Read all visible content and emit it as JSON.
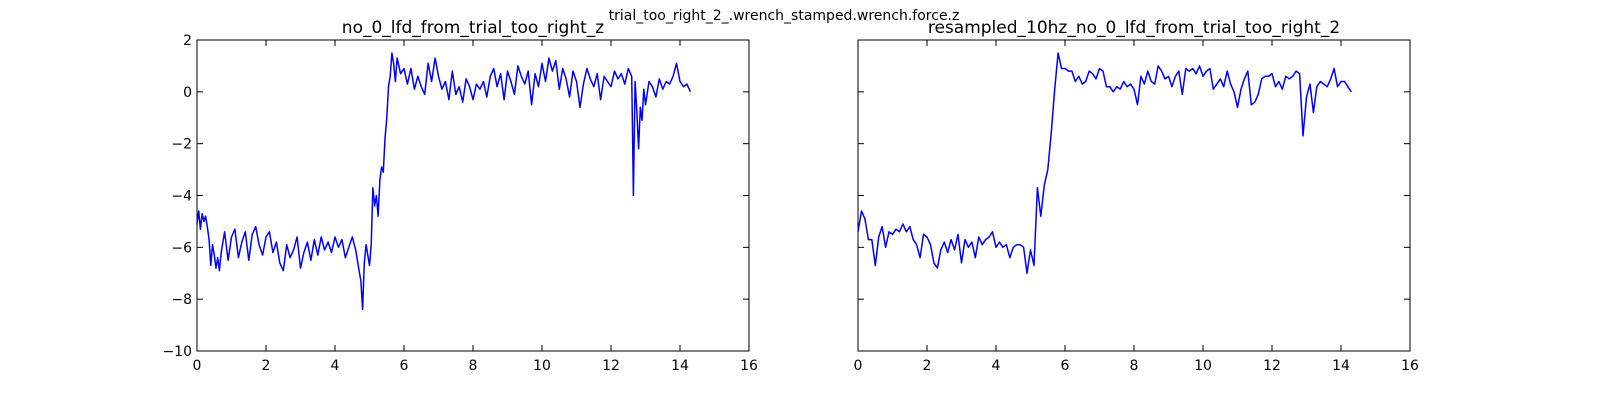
{
  "figure": {
    "suptitle": "trial_too_right_2_.wrench_stamped.wrench.force.z"
  },
  "chart_data": [
    {
      "type": "line",
      "title": "no_0_lfd_from_trial_too_right_z",
      "xlabel": "",
      "ylabel": "",
      "xlim": [
        0,
        16
      ],
      "ylim": [
        -10,
        2
      ],
      "xticks": [
        "0",
        "2",
        "4",
        "6",
        "8",
        "10",
        "12",
        "14",
        "16"
      ],
      "yticks": [
        "−10",
        "−8",
        "−6",
        "−4",
        "−2",
        "0",
        "2"
      ],
      "show_yticklabels": true,
      "grid": false,
      "series": [
        {
          "color": "#0000ff",
          "x": [
            0.0,
            0.05,
            0.1,
            0.15,
            0.2,
            0.25,
            0.3,
            0.35,
            0.4,
            0.45,
            0.5,
            0.55,
            0.6,
            0.65,
            0.7,
            0.8,
            0.9,
            1.0,
            1.1,
            1.2,
            1.3,
            1.4,
            1.5,
            1.6,
            1.7,
            1.8,
            1.9,
            2.0,
            2.1,
            2.2,
            2.3,
            2.4,
            2.5,
            2.6,
            2.7,
            2.8,
            2.9,
            3.0,
            3.1,
            3.2,
            3.3,
            3.4,
            3.5,
            3.6,
            3.7,
            3.8,
            3.9,
            4.0,
            4.1,
            4.2,
            4.3,
            4.4,
            4.5,
            4.6,
            4.7,
            4.75,
            4.8,
            4.85,
            4.9,
            5.0,
            5.05,
            5.1,
            5.15,
            5.2,
            5.25,
            5.3,
            5.35,
            5.4,
            5.45,
            5.5,
            5.55,
            5.6,
            5.65,
            5.7,
            5.75,
            5.8,
            5.9,
            6.0,
            6.1,
            6.2,
            6.3,
            6.4,
            6.5,
            6.6,
            6.7,
            6.8,
            6.9,
            7.0,
            7.1,
            7.2,
            7.3,
            7.4,
            7.5,
            7.6,
            7.7,
            7.8,
            7.9,
            8.0,
            8.1,
            8.2,
            8.3,
            8.4,
            8.5,
            8.6,
            8.7,
            8.8,
            8.9,
            9.0,
            9.1,
            9.2,
            9.3,
            9.4,
            9.5,
            9.6,
            9.7,
            9.8,
            9.9,
            10.0,
            10.1,
            10.2,
            10.3,
            10.4,
            10.5,
            10.6,
            10.7,
            10.8,
            10.9,
            11.0,
            11.1,
            11.2,
            11.3,
            11.4,
            11.5,
            11.6,
            11.7,
            11.8,
            11.9,
            12.0,
            12.1,
            12.2,
            12.3,
            12.4,
            12.5,
            12.6,
            12.62,
            12.65,
            12.68,
            12.7,
            12.75,
            12.8,
            12.85,
            12.9,
            12.95,
            13.0,
            13.1,
            13.2,
            13.3,
            13.4,
            13.5,
            13.6,
            13.7,
            13.8,
            13.9,
            14.0,
            14.1,
            14.2,
            14.3
          ],
          "y": [
            -5.1,
            -4.6,
            -5.3,
            -4.7,
            -5.0,
            -4.8,
            -5.2,
            -5.7,
            -6.7,
            -5.9,
            -6.3,
            -6.8,
            -6.4,
            -6.9,
            -6.2,
            -5.4,
            -6.5,
            -5.6,
            -5.3,
            -6.4,
            -5.8,
            -5.4,
            -6.5,
            -5.5,
            -5.2,
            -5.9,
            -6.3,
            -5.6,
            -5.4,
            -6.2,
            -5.8,
            -6.6,
            -6.9,
            -5.9,
            -6.4,
            -6.1,
            -5.6,
            -6.8,
            -6.2,
            -5.8,
            -6.5,
            -5.7,
            -6.3,
            -5.6,
            -6.1,
            -5.8,
            -6.2,
            -5.6,
            -6.0,
            -5.7,
            -6.4,
            -6.0,
            -5.6,
            -6.1,
            -6.9,
            -7.3,
            -8.4,
            -6.6,
            -5.9,
            -6.7,
            -5.9,
            -3.7,
            -4.4,
            -4.0,
            -4.8,
            -3.4,
            -2.9,
            -3.1,
            -1.8,
            -1.0,
            0.2,
            0.6,
            1.5,
            1.1,
            0.4,
            1.3,
            0.7,
            0.9,
            0.3,
            0.9,
            0.1,
            0.6,
            0.2,
            -0.1,
            1.1,
            0.4,
            1.3,
            0.6,
            0.1,
            0.4,
            -0.3,
            0.8,
            -0.1,
            0.2,
            -0.4,
            0.5,
            0.2,
            -0.3,
            0.3,
            0.1,
            0.4,
            -0.2,
            0.6,
            0.9,
            0.2,
            0.7,
            -0.3,
            0.8,
            0.4,
            -0.1,
            1.0,
            0.6,
            0.3,
            0.8,
            -0.5,
            0.7,
            0.2,
            1.1,
            0.4,
            1.3,
            0.8,
            1.2,
            0.1,
            0.9,
            0.5,
            -0.2,
            0.8,
            0.4,
            -0.6,
            0.3,
            0.9,
            0.5,
            0.2,
            0.7,
            -0.3,
            0.6,
            0.4,
            0.2,
            0.8,
            0.5,
            0.7,
            0.3,
            0.9,
            0.6,
            -1.2,
            -4.0,
            -1.1,
            0.4,
            -0.8,
            -2.2,
            -0.6,
            -1.1,
            0.1,
            -0.5,
            0.4,
            0.2,
            -0.2,
            0.5,
            0.1,
            0.4,
            0.3,
            0.6,
            1.1,
            0.4,
            0.2,
            0.3,
            0.0
          ]
        }
      ]
    },
    {
      "type": "line",
      "title": "resampled_10hz_no_0_lfd_from_trial_too_right_2",
      "xlabel": "",
      "ylabel": "",
      "xlim": [
        0,
        16
      ],
      "ylim": [
        -10,
        2
      ],
      "xticks": [
        "0",
        "2",
        "4",
        "6",
        "8",
        "10",
        "12",
        "14",
        "16"
      ],
      "yticks": [
        "−10",
        "−8",
        "−6",
        "−4",
        "−2",
        "0",
        "2"
      ],
      "show_yticklabels": false,
      "grid": false,
      "series": [
        {
          "color": "#0000ff",
          "x": [
            0.0,
            0.1,
            0.2,
            0.3,
            0.4,
            0.5,
            0.6,
            0.7,
            0.8,
            0.9,
            1.0,
            1.1,
            1.2,
            1.3,
            1.4,
            1.5,
            1.6,
            1.7,
            1.8,
            1.9,
            2.0,
            2.1,
            2.2,
            2.3,
            2.4,
            2.5,
            2.6,
            2.7,
            2.8,
            2.9,
            3.0,
            3.1,
            3.2,
            3.3,
            3.4,
            3.5,
            3.6,
            3.7,
            3.8,
            3.9,
            4.0,
            4.1,
            4.2,
            4.3,
            4.4,
            4.5,
            4.6,
            4.7,
            4.8,
            4.9,
            5.0,
            5.1,
            5.2,
            5.3,
            5.4,
            5.5,
            5.6,
            5.7,
            5.8,
            5.9,
            6.0,
            6.1,
            6.2,
            6.3,
            6.4,
            6.5,
            6.6,
            6.7,
            6.8,
            6.9,
            7.0,
            7.1,
            7.2,
            7.3,
            7.4,
            7.5,
            7.6,
            7.7,
            7.8,
            7.9,
            8.0,
            8.1,
            8.2,
            8.3,
            8.4,
            8.5,
            8.6,
            8.7,
            8.8,
            8.9,
            9.0,
            9.1,
            9.2,
            9.3,
            9.4,
            9.5,
            9.6,
            9.7,
            9.8,
            9.9,
            10.0,
            10.1,
            10.2,
            10.3,
            10.4,
            10.5,
            10.6,
            10.7,
            10.8,
            10.9,
            11.0,
            11.1,
            11.2,
            11.3,
            11.4,
            11.5,
            11.6,
            11.7,
            11.8,
            11.9,
            12.0,
            12.1,
            12.2,
            12.3,
            12.4,
            12.5,
            12.6,
            12.7,
            12.8,
            12.9,
            13.0,
            13.1,
            13.2,
            13.3,
            13.4,
            13.5,
            13.6,
            13.7,
            13.8,
            13.9,
            14.0,
            14.1,
            14.2,
            14.3
          ],
          "y": [
            -5.4,
            -4.6,
            -4.9,
            -5.7,
            -5.7,
            -6.7,
            -5.6,
            -5.2,
            -6.0,
            -5.4,
            -5.5,
            -5.3,
            -5.4,
            -5.1,
            -5.4,
            -5.2,
            -5.7,
            -5.9,
            -6.4,
            -5.5,
            -5.6,
            -5.9,
            -6.6,
            -6.8,
            -6.1,
            -5.8,
            -6.2,
            -5.7,
            -6.1,
            -5.5,
            -6.6,
            -5.7,
            -6.0,
            -5.8,
            -6.4,
            -5.6,
            -5.9,
            -5.7,
            -5.6,
            -5.4,
            -6.0,
            -5.8,
            -6.0,
            -5.9,
            -6.4,
            -6.0,
            -5.9,
            -5.9,
            -6.0,
            -7.0,
            -6.1,
            -6.7,
            -3.7,
            -4.8,
            -3.6,
            -3.0,
            -1.6,
            0.1,
            1.5,
            0.9,
            0.9,
            0.8,
            0.8,
            0.4,
            0.6,
            0.3,
            0.4,
            0.8,
            0.7,
            0.5,
            0.9,
            0.8,
            0.2,
            0.2,
            0.0,
            0.2,
            0.1,
            0.4,
            0.2,
            0.3,
            0.1,
            -0.5,
            0.6,
            0.3,
            0.8,
            0.4,
            0.3,
            1.0,
            0.8,
            0.5,
            0.6,
            0.2,
            0.6,
            0.8,
            -0.1,
            0.9,
            0.8,
            0.9,
            0.7,
            1.0,
            0.6,
            0.8,
            0.9,
            0.1,
            0.3,
            0.5,
            0.2,
            0.8,
            0.3,
            0.0,
            -0.6,
            0.1,
            0.5,
            0.8,
            -0.5,
            -0.4,
            -0.1,
            0.5,
            0.6,
            0.6,
            0.7,
            0.2,
            0.4,
            0.1,
            0.6,
            0.5,
            0.6,
            0.8,
            0.7,
            -1.7,
            -0.2,
            0.3,
            -0.8,
            0.2,
            0.4,
            0.3,
            0.2,
            0.5,
            0.9,
            0.2,
            0.4,
            0.4,
            0.2,
            0.0
          ]
        }
      ]
    }
  ]
}
